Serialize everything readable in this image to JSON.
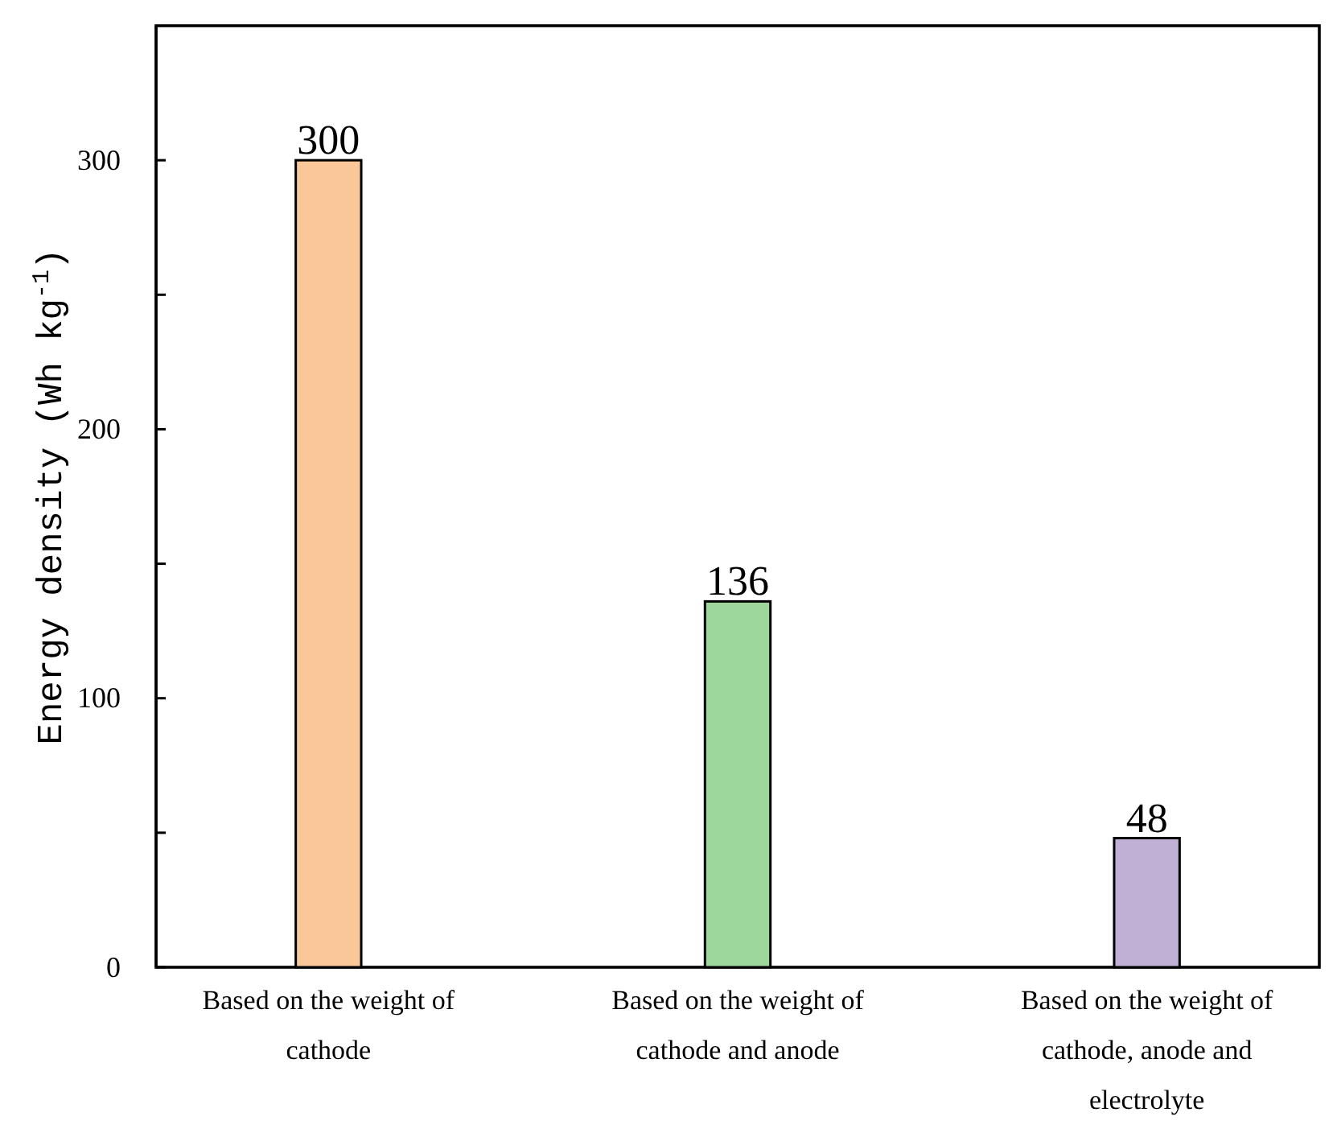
{
  "chart_data": {
    "type": "bar",
    "ylabel": "Energy density (Wh kg$^{-1}$)",
    "categories": [
      "Based on the weight of cathode",
      "Based on the weight of cathode and anode",
      "Based on the weight of cathode, anode and electrolyte"
    ],
    "values": [
      300,
      136,
      48
    ],
    "colors": [
      "#fac898",
      "#9dd79b",
      "#c0b0d5"
    ],
    "data_labels": true,
    "ylim": [
      0,
      350
    ],
    "yticks": [
      0,
      {
        "value": 50,
        "label": null
      },
      100,
      {
        "value": 150,
        "label": null
      },
      200,
      {
        "value": 250,
        "label": null
      },
      300
    ]
  }
}
